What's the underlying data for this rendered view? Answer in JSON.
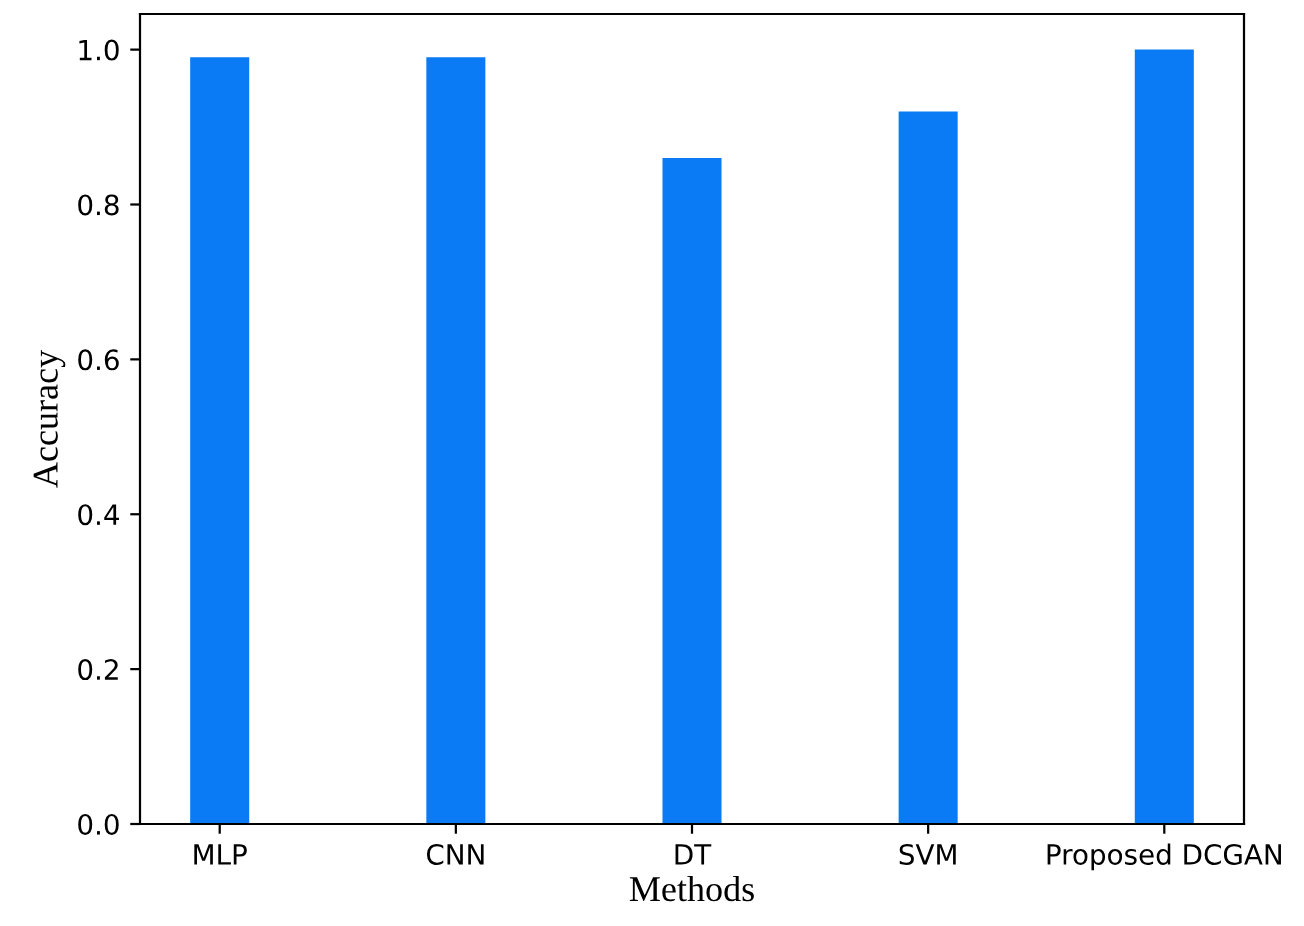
{
  "chart_data": {
    "type": "bar",
    "xlabel": "Methods",
    "ylabel": "Accuracy",
    "categories": [
      "MLP",
      "CNN",
      "DT",
      "SVM",
      "Proposed DCGAN"
    ],
    "values": [
      0.99,
      0.99,
      0.86,
      0.92,
      1.0
    ],
    "color": "#0a7af5",
    "ylim": [
      0,
      1.046
    ],
    "yticks": [
      {
        "value": 0,
        "label": "0.0"
      },
      0.2,
      0.4,
      0.6,
      0.8,
      {
        "value": 1,
        "label": "1.0"
      }
    ],
    "grid": false,
    "legend": false
  }
}
